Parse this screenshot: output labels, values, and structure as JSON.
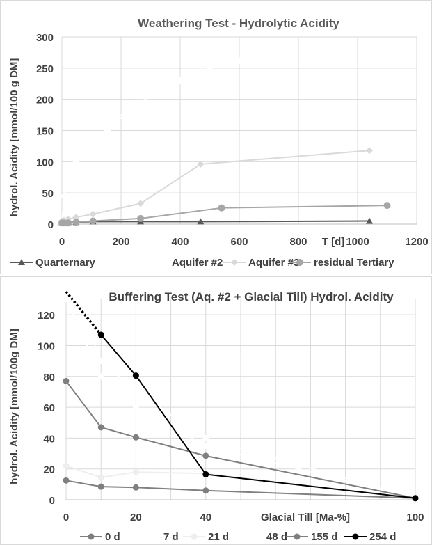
{
  "chart_data": [
    {
      "type": "scatter",
      "title": "Weathering Test - Hydrolytic Acidity",
      "xlabel": "T [d]",
      "ylabel": "hydrol. Acidity [mmol/100 g DM]",
      "xlim": [
        0,
        1200
      ],
      "ylim": [
        0,
        300
      ],
      "x_ticks": [
        "0",
        "200",
        "400",
        "600",
        "800",
        "1000",
        "1200"
      ],
      "y_ticks": [
        "0",
        "50",
        "100",
        "150",
        "200",
        "250",
        "300"
      ],
      "grid": true,
      "legend_position": "bottom",
      "series": [
        {
          "name": "Quarternary",
          "color": "#595959",
          "marker": "triangle",
          "points": [
            [
              0,
              3
            ],
            [
              7,
              3
            ],
            [
              21,
              3
            ],
            [
              48,
              3
            ],
            [
              105,
              4
            ],
            [
              266,
              4
            ],
            [
              469,
              4
            ],
            [
              1040,
              5
            ]
          ]
        },
        {
          "name": "Aquifer #2",
          "color": "#ffffff",
          "marker": "diamond",
          "points": [
            [
              0,
              0
            ],
            [
              7,
              45
            ],
            [
              21,
              70
            ],
            [
              48,
              100
            ],
            [
              105,
              120
            ],
            [
              155,
              150
            ],
            [
              210,
              175
            ],
            [
              266,
              195
            ],
            [
              330,
              215
            ],
            [
              400,
              230
            ],
            [
              469,
              245
            ],
            [
              540,
              255
            ],
            [
              600,
              262
            ]
          ]
        },
        {
          "name": "Aquifer #3",
          "color": "#d9d9d9",
          "marker": "diamond",
          "points": [
            [
              0,
              5
            ],
            [
              7,
              6
            ],
            [
              21,
              8
            ],
            [
              48,
              11
            ],
            [
              105,
              16
            ],
            [
              266,
              33
            ],
            [
              469,
              96
            ],
            [
              1040,
              118
            ]
          ]
        },
        {
          "name": "residual Tertiary",
          "color": "#a6a6a6",
          "marker": "circle",
          "points": [
            [
              0,
              2
            ],
            [
              7,
              2
            ],
            [
              21,
              2
            ],
            [
              48,
              3
            ],
            [
              105,
              5
            ],
            [
              266,
              9
            ],
            [
              540,
              26
            ],
            [
              1100,
              30
            ]
          ]
        }
      ]
    },
    {
      "type": "line",
      "title": "Buffering Test (Aq. #2 + Glacial Till) Hydrol. Acidity",
      "xlabel": "Glacial Till [Ma-%]",
      "ylabel": "hydrol. Acidity [mmol/100g DM]",
      "xlim": [
        0,
        100
      ],
      "ylim": [
        0,
        130
      ],
      "x_ticks": [
        "0",
        "20",
        "40",
        "100"
      ],
      "y_ticks": [
        "0",
        "20",
        "40",
        "60",
        "80",
        "100",
        "120"
      ],
      "grid": true,
      "legend_position": "bottom",
      "series": [
        {
          "name": "0 d",
          "color": "#7f7f7f",
          "points": [
            [
              0,
              12.5
            ],
            [
              10,
              8.5
            ],
            [
              20,
              8
            ],
            [
              40,
              6
            ],
            [
              100,
              1
            ]
          ]
        },
        {
          "name": "7 d",
          "color": "#ffffff",
          "points": [
            [
              0,
              150
            ],
            [
              10,
              90
            ],
            [
              20,
              70
            ],
            [
              40,
              40
            ],
            [
              100,
              1
            ]
          ]
        },
        {
          "name": "21 d",
          "color": "#eeeeee",
          "points": [
            [
              0,
              22
            ],
            [
              10,
              14.5
            ],
            [
              20,
              18
            ],
            [
              40,
              17
            ],
            [
              100,
              1
            ]
          ]
        },
        {
          "name": "48 d",
          "color": "#ffffff",
          "points": [
            [
              0,
              130
            ],
            [
              10,
              80
            ],
            [
              20,
              60
            ],
            [
              40,
              35
            ],
            [
              100,
              1
            ]
          ]
        },
        {
          "name": "155 d",
          "color": "#7f7f7f",
          "points": [
            [
              0,
              77
            ],
            [
              10,
              47
            ],
            [
              20,
              40.5
            ],
            [
              40,
              28.5
            ],
            [
              100,
              1
            ]
          ]
        },
        {
          "name": "254 d",
          "color": "#000000",
          "points": [
            [
              10,
              107
            ],
            [
              20,
              80.5
            ],
            [
              40,
              16.5
            ],
            [
              100,
              1
            ]
          ],
          "dotted_extension": [
            [
              0,
              135
            ],
            [
              10,
              107
            ]
          ]
        }
      ]
    }
  ]
}
